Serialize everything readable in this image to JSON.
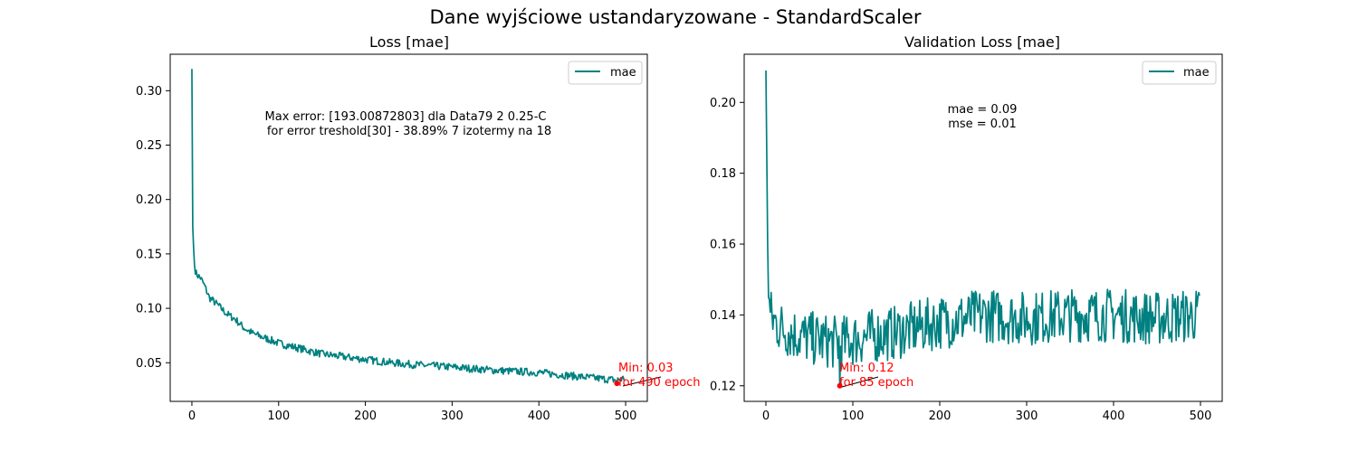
{
  "figure": {
    "suptitle": "Dane wyjściowe ustandaryzowane - StandardScaler"
  },
  "colors": {
    "series": "#008080",
    "annotation": "#ff0000",
    "axes": "#000000"
  },
  "chart_data": [
    {
      "type": "line",
      "title": "Loss [mae]",
      "xlabel": "",
      "ylabel": "",
      "xlim": [
        -25,
        525
      ],
      "ylim": [
        0.0145,
        0.3335
      ],
      "xticks": [
        0,
        100,
        200,
        300,
        400,
        500
      ],
      "xtick_labels": [
        "0",
        "100",
        "200",
        "300",
        "400",
        "500"
      ],
      "yticks": [
        0.05,
        0.1,
        0.15,
        0.2,
        0.25,
        0.3
      ],
      "ytick_labels": [
        "0.05",
        "0.10",
        "0.15",
        "0.20",
        "0.25",
        "0.30"
      ],
      "grid": false,
      "legend": {
        "position": "top-right",
        "entries": [
          "mae"
        ]
      },
      "series": [
        {
          "name": "mae",
          "x": [
            0,
            1,
            2,
            3,
            4,
            5,
            7,
            10,
            15,
            20,
            30,
            40,
            50,
            60,
            70,
            80,
            100,
            120,
            150,
            180,
            200,
            230,
            260,
            300,
            350,
            400,
            450,
            490,
            499
          ],
          "y": [
            0.32,
            0.175,
            0.155,
            0.14,
            0.135,
            0.132,
            0.13,
            0.128,
            0.12,
            0.11,
            0.103,
            0.095,
            0.09,
            0.082,
            0.077,
            0.074,
            0.068,
            0.064,
            0.058,
            0.055,
            0.053,
            0.05,
            0.048,
            0.046,
            0.043,
            0.041,
            0.037,
            0.034,
            0.036
          ],
          "noise": 0.0035
        }
      ],
      "annotations": [
        {
          "text_lines": [
            "Max error: [193.00872803]  dla Data79 2 0.25-C",
            "for error treshold[30] - 38.89%     7 izotermy na 18"
          ],
          "position": "upper-center",
          "color": "#000000"
        },
        {
          "text_lines": [
            "Min: 0.03",
            "for 490 epoch"
          ],
          "point": [
            490,
            0.031
          ],
          "color": "#ff0000"
        }
      ]
    },
    {
      "type": "line",
      "title": "Validation Loss [mae]",
      "xlabel": "",
      "ylabel": "",
      "xlim": [
        -25,
        525
      ],
      "ylim": [
        0.1156,
        0.2136
      ],
      "xticks": [
        0,
        100,
        200,
        300,
        400,
        500
      ],
      "xtick_labels": [
        "0",
        "100",
        "200",
        "300",
        "400",
        "500"
      ],
      "yticks": [
        0.12,
        0.14,
        0.16,
        0.18,
        0.2
      ],
      "ytick_labels": [
        "0.12",
        "0.14",
        "0.16",
        "0.18",
        "0.20"
      ],
      "grid": false,
      "legend": {
        "position": "top-right",
        "entries": [
          "mae"
        ]
      },
      "series": [
        {
          "name": "mae",
          "x": [
            0,
            1,
            2,
            3,
            5,
            10,
            20,
            40,
            60,
            85,
            100,
            120,
            150,
            200,
            230,
            250,
            300,
            350,
            400,
            450,
            499
          ],
          "y": [
            0.209,
            0.185,
            0.16,
            0.145,
            0.14,
            0.138,
            0.136,
            0.134,
            0.133,
            0.132,
            0.133,
            0.134,
            0.135,
            0.138,
            0.139,
            0.14,
            0.139,
            0.14,
            0.14,
            0.139,
            0.14
          ],
          "noise": 0.0055
        }
      ],
      "annotations": [
        {
          "text_lines": [
            "mae = 0.09",
            "mse = 0.01"
          ],
          "position": "upper-center",
          "color": "#000000"
        },
        {
          "text_lines": [
            "Min: 0.12",
            "for 85 epoch"
          ],
          "point": [
            85,
            0.12
          ],
          "color": "#ff0000"
        }
      ]
    }
  ]
}
